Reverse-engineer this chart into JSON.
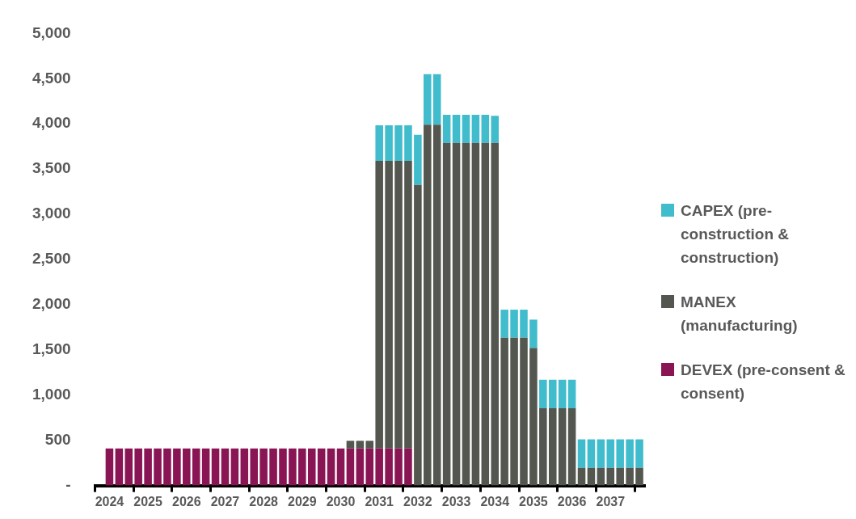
{
  "chart_data": {
    "type": "bar",
    "stacked": true,
    "legend": "right",
    "grid": false,
    "categories": [
      null,
      "2024",
      null,
      null,
      null,
      "2025",
      null,
      null,
      null,
      "2026",
      null,
      null,
      null,
      "2027",
      null,
      null,
      null,
      "2028",
      null,
      null,
      null,
      "2029",
      null,
      null,
      null,
      "2030",
      null,
      null,
      null,
      "2031",
      null,
      null,
      null,
      "2032",
      null,
      null,
      null,
      "2033",
      null,
      null,
      null,
      "2034",
      null,
      null,
      null,
      "2035",
      null,
      null,
      null,
      "2036",
      null,
      null,
      null,
      "2037",
      null,
      null,
      null
    ],
    "ylim": [
      0,
      5000
    ],
    "yticks": [
      {
        "value": 0,
        "label": "-"
      },
      500,
      {
        "value": 1000,
        "label": "1,000"
      },
      {
        "value": 1500,
        "label": "1,500"
      },
      {
        "value": 2000,
        "label": "2,000"
      },
      {
        "value": 2500,
        "label": "2,500"
      },
      {
        "value": 3000,
        "label": "3,000"
      },
      {
        "value": 3500,
        "label": "3,500"
      },
      {
        "value": 4000,
        "label": "4,000"
      },
      {
        "value": 4500,
        "label": "4,500"
      },
      {
        "value": 5000,
        "label": "5,000"
      }
    ],
    "series": [
      {
        "name": "DEVEX (pre-consent & consent)",
        "color": "#8a1555",
        "values": [
          null,
          410,
          410,
          410,
          410,
          410,
          410,
          410,
          410,
          410,
          410,
          410,
          410,
          410,
          410,
          410,
          410,
          410,
          410,
          410,
          410,
          410,
          410,
          410,
          410,
          410,
          410,
          410,
          410,
          410,
          410,
          410,
          410,
          null,
          null,
          null,
          null,
          null,
          null,
          null,
          null,
          null,
          null,
          null,
          null,
          null,
          null,
          null,
          null,
          null,
          null,
          null,
          null,
          null,
          null,
          null,
          null
        ]
      },
      {
        "name": "MANEX (manufacturing)",
        "color": "#54574f",
        "values": [
          null,
          null,
          null,
          null,
          null,
          null,
          null,
          null,
          null,
          null,
          null,
          null,
          null,
          null,
          null,
          null,
          null,
          null,
          null,
          null,
          null,
          null,
          null,
          null,
          null,
          null,
          85,
          85,
          85,
          3180,
          3180,
          3180,
          3180,
          3325,
          3990,
          3990,
          3790,
          3790,
          3790,
          3790,
          3790,
          3790,
          1635,
          1635,
          1635,
          1520,
          855,
          855,
          855,
          855,
          195,
          195,
          195,
          195,
          195,
          195,
          195
        ]
      },
      {
        "name": "CAPEX (pre-construction & construction)",
        "color": "#40bccc",
        "values": [
          null,
          null,
          null,
          null,
          null,
          null,
          null,
          null,
          null,
          null,
          null,
          null,
          null,
          null,
          null,
          null,
          null,
          null,
          null,
          null,
          null,
          null,
          null,
          null,
          null,
          null,
          null,
          null,
          null,
          395,
          395,
          395,
          395,
          555,
          560,
          560,
          310,
          310,
          310,
          310,
          310,
          300,
          310,
          310,
          310,
          315,
          315,
          315,
          315,
          315,
          315,
          315,
          315,
          315,
          315,
          315,
          315
        ]
      }
    ]
  }
}
